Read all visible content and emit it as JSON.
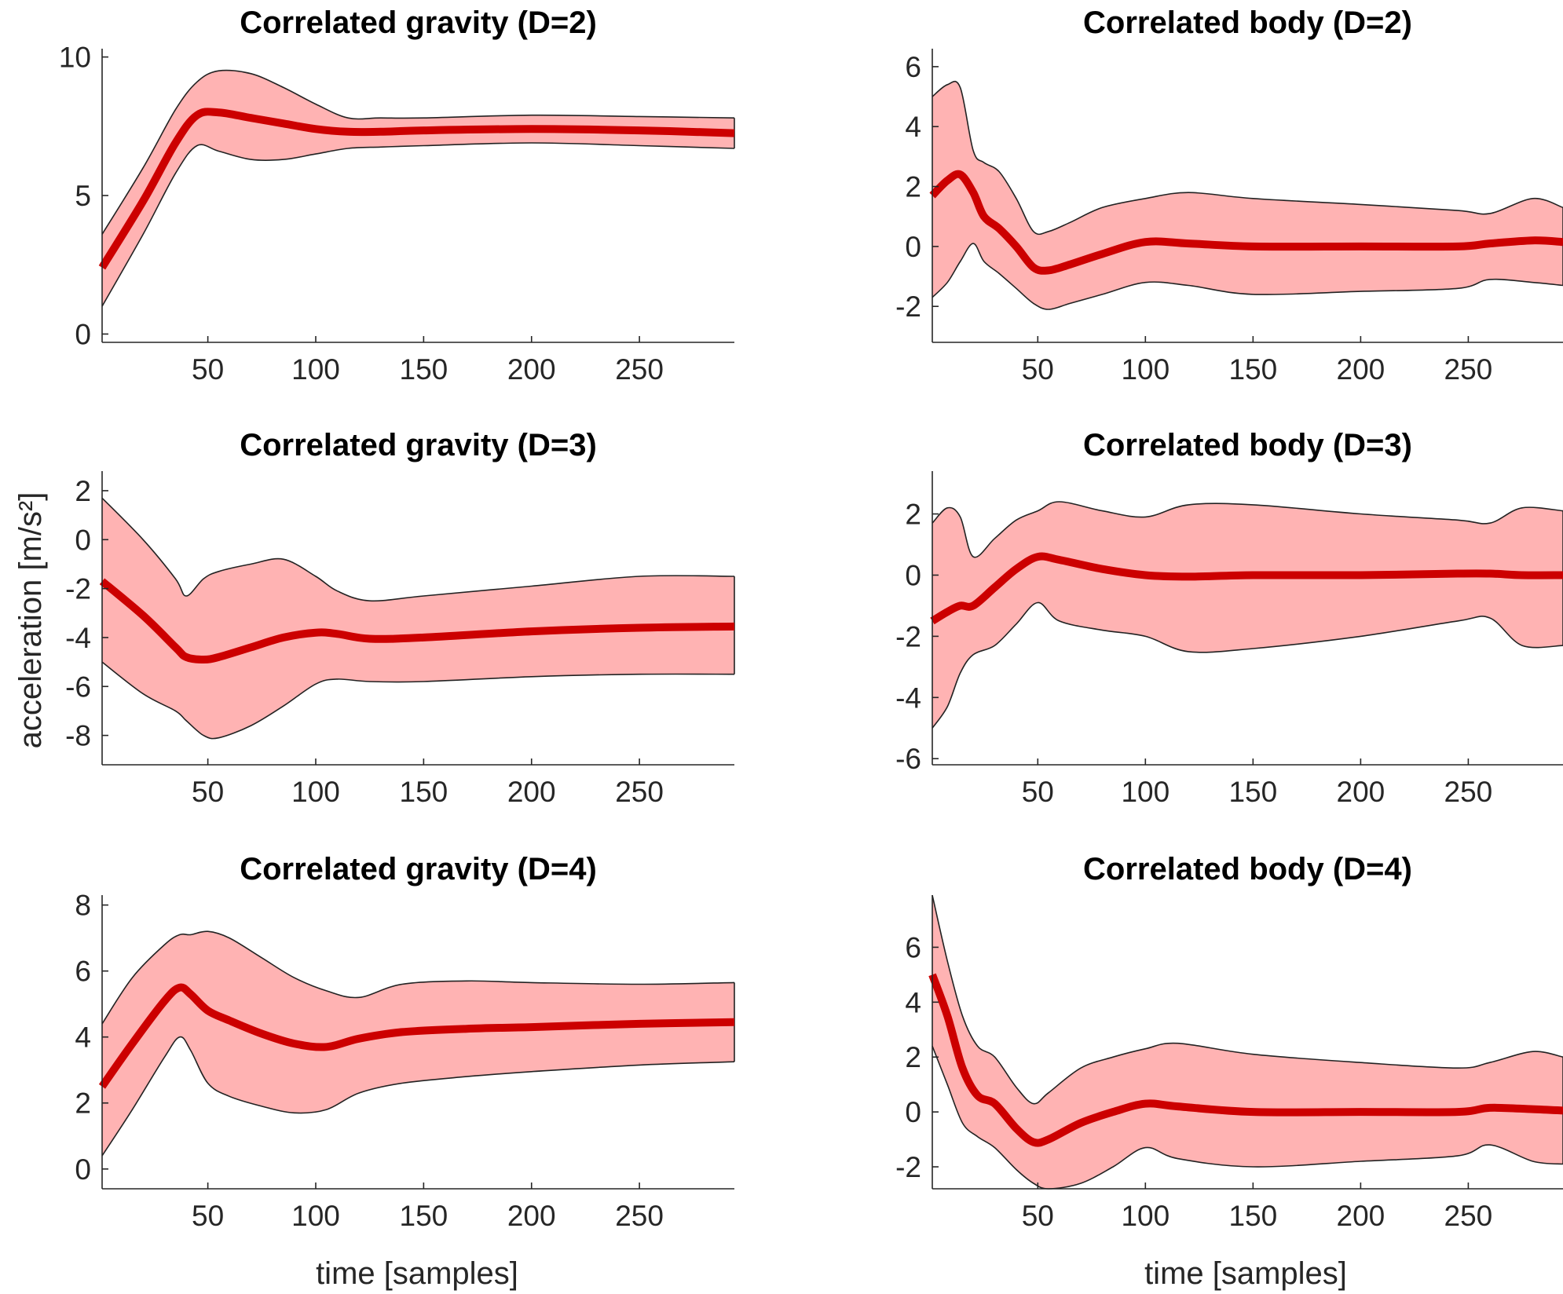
{
  "figure": {
    "ylabel": "acceleration [m/s²]",
    "xlabel": "time [samples]",
    "colors": {
      "mean_line": "#cc0000",
      "band_fill": "#ffb3b3",
      "band_edge": "#222222",
      "axis": "#262626"
    }
  },
  "chart_data": [
    {
      "type": "area",
      "title": "Correlated gravity (D=2)",
      "xlim": [
        1,
        294
      ],
      "ylim": [
        -0.3,
        10.3
      ],
      "xticks": [
        50,
        100,
        150,
        200,
        250
      ],
      "yticks": [
        0,
        5,
        10
      ],
      "x": [
        1,
        20,
        35,
        45,
        55,
        70,
        85,
        100,
        115,
        130,
        150,
        200,
        250,
        294
      ],
      "mean": [
        2.4,
        4.8,
        6.9,
        7.9,
        8.0,
        7.8,
        7.6,
        7.4,
        7.3,
        7.3,
        7.35,
        7.4,
        7.35,
        7.25
      ],
      "upper": [
        3.6,
        6.0,
        8.1,
        9.1,
        9.5,
        9.4,
        8.9,
        8.3,
        7.8,
        7.8,
        7.8,
        7.9,
        7.85,
        7.8
      ],
      "lower": [
        1.0,
        3.6,
        5.8,
        6.8,
        6.6,
        6.3,
        6.3,
        6.5,
        6.7,
        6.75,
        6.8,
        6.9,
        6.8,
        6.7
      ]
    },
    {
      "type": "area",
      "title": "Correlated body (D=2)",
      "xlim": [
        1,
        294
      ],
      "ylim": [
        -3.2,
        6.6
      ],
      "xticks": [
        50,
        100,
        150,
        200,
        250
      ],
      "yticks": [
        -2,
        0,
        2,
        4,
        6
      ],
      "x": [
        1,
        8,
        14,
        20,
        25,
        32,
        40,
        48,
        55,
        65,
        80,
        100,
        120,
        150,
        200,
        245,
        260,
        280,
        294
      ],
      "mean": [
        1.7,
        2.2,
        2.4,
        1.8,
        1.0,
        0.6,
        0.0,
        -0.7,
        -0.8,
        -0.6,
        -0.25,
        0.15,
        0.1,
        0.0,
        0.0,
        0.0,
        0.1,
        0.2,
        0.15
      ],
      "upper": [
        5.0,
        5.4,
        5.3,
        3.2,
        2.8,
        2.5,
        1.6,
        0.5,
        0.5,
        0.8,
        1.3,
        1.6,
        1.8,
        1.6,
        1.4,
        1.2,
        1.1,
        1.6,
        1.3
      ],
      "lower": [
        -1.7,
        -1.2,
        -0.5,
        0.1,
        -0.5,
        -0.9,
        -1.4,
        -1.9,
        -2.1,
        -1.9,
        -1.6,
        -1.2,
        -1.3,
        -1.6,
        -1.5,
        -1.4,
        -1.1,
        -1.2,
        -1.3
      ]
    },
    {
      "type": "area",
      "title": "Correlated gravity (D=3)",
      "xlim": [
        1,
        294
      ],
      "ylim": [
        -9.2,
        2.8
      ],
      "xticks": [
        50,
        100,
        150,
        200,
        250
      ],
      "yticks": [
        -8,
        -6,
        -4,
        -2,
        0,
        2
      ],
      "x": [
        1,
        20,
        35,
        40,
        48,
        55,
        70,
        85,
        100,
        110,
        125,
        150,
        200,
        250,
        294
      ],
      "mean": [
        -1.7,
        -3.1,
        -4.4,
        -4.8,
        -4.9,
        -4.8,
        -4.4,
        -4.0,
        -3.8,
        -3.85,
        -4.05,
        -4.0,
        -3.75,
        -3.6,
        -3.55
      ],
      "upper": [
        1.7,
        0.0,
        -1.6,
        -2.3,
        -1.6,
        -1.3,
        -1.0,
        -0.8,
        -1.5,
        -2.1,
        -2.5,
        -2.3,
        -1.9,
        -1.5,
        -1.5
      ],
      "lower": [
        -5.0,
        -6.3,
        -7.0,
        -7.4,
        -8.0,
        -8.1,
        -7.6,
        -6.8,
        -5.9,
        -5.7,
        -5.8,
        -5.8,
        -5.6,
        -5.5,
        -5.5
      ]
    },
    {
      "type": "area",
      "title": "Correlated body (D=3)",
      "xlim": [
        1,
        294
      ],
      "ylim": [
        -6.2,
        3.4
      ],
      "xticks": [
        50,
        100,
        150,
        200,
        250
      ],
      "yticks": [
        -6,
        -4,
        -2,
        0,
        2
      ],
      "x": [
        1,
        8,
        14,
        20,
        30,
        40,
        50,
        60,
        80,
        100,
        120,
        150,
        200,
        245,
        260,
        275,
        294
      ],
      "mean": [
        -1.5,
        -1.2,
        -1.0,
        -1.0,
        -0.4,
        0.2,
        0.6,
        0.5,
        0.2,
        0.0,
        -0.05,
        0.0,
        0.0,
        0.05,
        0.05,
        0.0,
        0.0
      ],
      "upper": [
        1.7,
        2.2,
        1.9,
        0.6,
        1.2,
        1.8,
        2.1,
        2.4,
        2.1,
        1.9,
        2.3,
        2.3,
        2.0,
        1.8,
        1.7,
        2.2,
        2.1
      ],
      "lower": [
        -5.0,
        -4.3,
        -3.2,
        -2.6,
        -2.3,
        -1.6,
        -0.9,
        -1.5,
        -1.8,
        -2.0,
        -2.5,
        -2.4,
        -2.0,
        -1.5,
        -1.4,
        -2.3,
        -2.3
      ]
    },
    {
      "type": "area",
      "title": "Correlated gravity (D=4)",
      "xlim": [
        1,
        294
      ],
      "ylim": [
        -0.6,
        8.3
      ],
      "xticks": [
        50,
        100,
        150,
        200,
        250
      ],
      "yticks": [
        0,
        2,
        4,
        6,
        8
      ],
      "x": [
        1,
        15,
        30,
        37,
        42,
        50,
        60,
        75,
        90,
        105,
        120,
        140,
        170,
        200,
        250,
        294
      ],
      "mean": [
        2.5,
        3.8,
        5.1,
        5.5,
        5.3,
        4.8,
        4.5,
        4.1,
        3.8,
        3.7,
        3.95,
        4.15,
        4.25,
        4.3,
        4.4,
        4.45
      ],
      "upper": [
        4.4,
        5.8,
        6.8,
        7.1,
        7.1,
        7.2,
        7.0,
        6.4,
        5.8,
        5.4,
        5.2,
        5.6,
        5.7,
        5.65,
        5.6,
        5.65
      ],
      "lower": [
        0.4,
        1.8,
        3.4,
        4.0,
        3.6,
        2.6,
        2.2,
        1.9,
        1.7,
        1.8,
        2.3,
        2.6,
        2.8,
        2.95,
        3.15,
        3.25
      ]
    },
    {
      "type": "area",
      "title": "Correlated body (D=4)",
      "xlim": [
        1,
        294
      ],
      "ylim": [
        -2.8,
        7.9
      ],
      "xticks": [
        50,
        100,
        150,
        200,
        250
      ],
      "yticks": [
        -2,
        0,
        2,
        4,
        6
      ],
      "x": [
        1,
        8,
        15,
        22,
        30,
        40,
        48,
        55,
        70,
        85,
        100,
        115,
        150,
        200,
        245,
        260,
        280,
        294
      ],
      "mean": [
        5.0,
        3.5,
        1.6,
        0.6,
        0.3,
        -0.6,
        -1.1,
        -1.0,
        -0.4,
        0.0,
        0.3,
        0.2,
        0.0,
        0.0,
        0.0,
        0.15,
        0.1,
        0.05
      ],
      "upper": [
        7.9,
        5.5,
        3.5,
        2.4,
        2.0,
        0.9,
        0.3,
        0.7,
        1.6,
        2.0,
        2.3,
        2.5,
        2.1,
        1.8,
        1.6,
        1.8,
        2.2,
        2.0
      ],
      "lower": [
        2.4,
        1.0,
        -0.4,
        -0.9,
        -1.3,
        -2.1,
        -2.6,
        -2.8,
        -2.6,
        -2.0,
        -1.3,
        -1.7,
        -2.0,
        -1.8,
        -1.6,
        -1.2,
        -1.8,
        -1.9
      ]
    }
  ]
}
